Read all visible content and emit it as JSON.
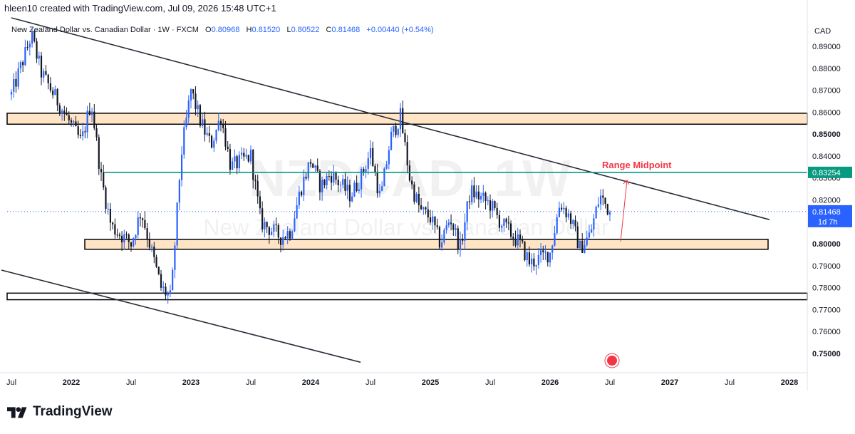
{
  "header": {
    "text": "hleen10 created with TradingView.com, Jul 09, 2026 15:48 UTC+1"
  },
  "legend": {
    "symbol": "New Zealand Dollar vs. Canadian Dollar · 1W · FXCM",
    "open_label": "O",
    "open": "0.80968",
    "high_label": "H",
    "high": "0.81520",
    "low_label": "L",
    "low": "0.80522",
    "close_label": "C",
    "close": "0.81468",
    "change": "+0.00440 (+0.54%)"
  },
  "watermark": {
    "ticker": "NZDCAD, 1W",
    "name": "New Zealand Dollar vs. Canadian Dollar"
  },
  "price_axis": {
    "currency": "CAD",
    "ticks": [
      "0.89000",
      "0.88000",
      "0.87000",
      "0.86000",
      "0.85000",
      "0.84000",
      "0.83000",
      "0.82000",
      "0.81000",
      "0.80000",
      "0.79000",
      "0.78000",
      "0.77000",
      "0.76000",
      "0.75000"
    ],
    "highlight_label": "0.83254",
    "last_price_label": "0.81468",
    "countdown": "1d 7h"
  },
  "time_axis": {
    "labels": [
      "Jul",
      "2022",
      "Jul",
      "2023",
      "Jul",
      "2024",
      "Jul",
      "2025",
      "Jul",
      "2026",
      "Jul",
      "2027",
      "Jul",
      "2028"
    ]
  },
  "annotation": {
    "text": "Range Midpoint"
  },
  "footer": {
    "brand": "TradingView"
  },
  "colors": {
    "up": "#2962ff",
    "down": "#131722",
    "midpoint": "#089981",
    "zone_fill": "#ffe5c6",
    "annotation": "#f23645",
    "last_price": "#2962ff"
  },
  "chart_data": {
    "type": "candlestick",
    "symbol": "NZDCAD",
    "interval": "1W",
    "y_range": [
      0.745,
      0.895
    ],
    "x_range": [
      "2021-07",
      "2028-03"
    ],
    "last_close": 0.81468,
    "horizontal_levels": [
      {
        "price": 0.83254,
        "kind": "range-midpoint"
      }
    ],
    "zones": [
      {
        "from": 0.8545,
        "to": 0.8595
      },
      {
        "from": 0.7975,
        "to": 0.802
      },
      {
        "from": 0.7745,
        "to": 0.7775
      }
    ],
    "trendlines": [
      {
        "from": [
          "2021-07",
          0.903
        ],
        "to": [
          "2027-11",
          0.811
        ]
      },
      {
        "from": [
          "2021-06",
          0.788
        ],
        "to": [
          "2024-06",
          0.746
        ]
      }
    ],
    "price_path": [
      [
        "2021-07",
        0.868
      ],
      [
        "2021-09",
        0.895
      ],
      [
        "2021-10",
        0.878
      ],
      [
        "2021-12",
        0.862
      ],
      [
        "2022-02",
        0.846
      ],
      [
        "2022-03",
        0.865
      ],
      [
        "2022-04",
        0.83
      ],
      [
        "2022-05",
        0.808
      ],
      [
        "2022-07",
        0.8
      ],
      [
        "2022-08",
        0.815
      ],
      [
        "2022-10",
        0.78
      ],
      [
        "2022-11",
        0.775
      ],
      [
        "2022-12",
        0.84
      ],
      [
        "2023-01",
        0.87
      ],
      [
        "2023-02",
        0.855
      ],
      [
        "2023-03",
        0.845
      ],
      [
        "2023-04",
        0.858
      ],
      [
        "2023-05",
        0.835
      ],
      [
        "2023-07",
        0.84
      ],
      [
        "2023-08",
        0.81
      ],
      [
        "2023-10",
        0.803
      ],
      [
        "2023-11",
        0.806
      ],
      [
        "2023-12",
        0.825
      ],
      [
        "2024-01",
        0.838
      ],
      [
        "2024-02",
        0.826
      ],
      [
        "2024-03",
        0.832
      ],
      [
        "2024-05",
        0.822
      ],
      [
        "2024-06",
        0.83
      ],
      [
        "2024-07",
        0.842
      ],
      [
        "2024-08",
        0.82
      ],
      [
        "2024-09",
        0.848
      ],
      [
        "2024-10",
        0.858
      ],
      [
        "2024-11",
        0.828
      ],
      [
        "2024-12",
        0.815
      ],
      [
        "2025-01",
        0.812
      ],
      [
        "2025-02",
        0.8
      ],
      [
        "2025-03",
        0.812
      ],
      [
        "2025-04",
        0.798
      ],
      [
        "2025-05",
        0.824
      ],
      [
        "2025-07",
        0.818
      ],
      [
        "2025-08",
        0.81
      ],
      [
        "2025-10",
        0.8
      ],
      [
        "2025-11",
        0.791
      ],
      [
        "2026-01",
        0.796
      ],
      [
        "2026-02",
        0.819
      ],
      [
        "2026-03",
        0.812
      ],
      [
        "2026-04",
        0.798
      ],
      [
        "2026-05",
        0.804
      ],
      [
        "2026-06",
        0.822
      ],
      [
        "2026-07",
        0.81468
      ]
    ]
  }
}
